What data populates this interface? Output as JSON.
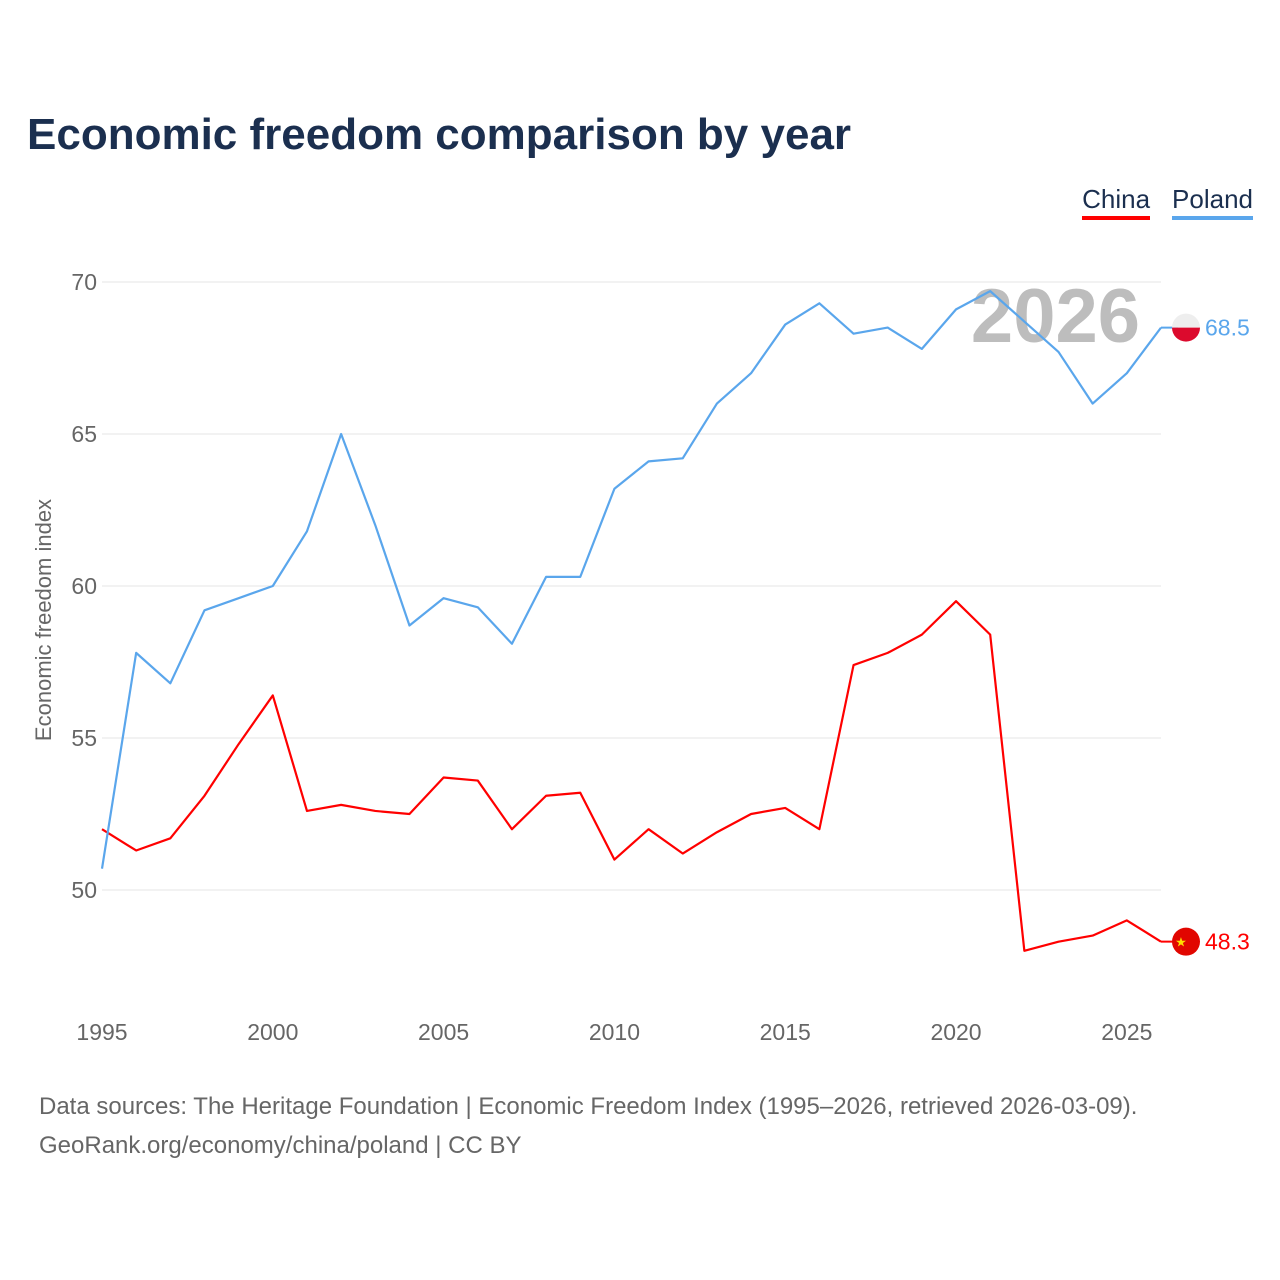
{
  "chart_data": {
    "type": "line",
    "title": "Economic freedom comparison by year",
    "xlabel": "",
    "ylabel": "Economic freedom index",
    "xlim": [
      1995,
      2026
    ],
    "ylim": [
      46.5,
      71
    ],
    "yticks": [
      50,
      55,
      60,
      65,
      70
    ],
    "xticks": [
      1995,
      2000,
      2005,
      2010,
      2015,
      2020,
      2025
    ],
    "grid": true,
    "legend_position": "top-right",
    "year_watermark": "2026",
    "x": [
      1995,
      1996,
      1997,
      1998,
      1999,
      2000,
      2001,
      2002,
      2003,
      2004,
      2005,
      2006,
      2007,
      2008,
      2009,
      2010,
      2011,
      2012,
      2013,
      2014,
      2015,
      2016,
      2017,
      2018,
      2019,
      2020,
      2021,
      2022,
      2023,
      2024,
      2025,
      2026
    ],
    "series": [
      {
        "name": "China",
        "color": "#ff0000",
        "end_label": "48.3",
        "flag": "china-flag",
        "values": [
          52.0,
          51.3,
          51.7,
          53.1,
          54.8,
          56.4,
          52.6,
          52.8,
          52.6,
          52.5,
          53.7,
          53.6,
          52.0,
          53.1,
          53.2,
          51.0,
          52.0,
          51.2,
          51.9,
          52.5,
          52.7,
          52.0,
          57.4,
          57.8,
          58.4,
          59.5,
          58.4,
          48.0,
          48.3,
          48.5,
          49.0,
          48.3
        ]
      },
      {
        "name": "Poland",
        "color": "#5aa6ec",
        "end_label": "68.5",
        "flag": "poland-flag",
        "values": [
          50.7,
          57.8,
          56.8,
          59.2,
          59.6,
          60.0,
          61.8,
          65.0,
          62.0,
          58.7,
          59.6,
          59.3,
          58.1,
          60.3,
          60.3,
          63.2,
          64.1,
          64.2,
          66.0,
          67.0,
          68.6,
          69.3,
          68.3,
          68.5,
          67.8,
          69.1,
          69.7,
          68.7,
          67.7,
          66.0,
          67.0,
          68.5
        ]
      }
    ]
  },
  "footer": {
    "line1": "Data sources: The Heritage Foundation | Economic Freedom Index (1995–2026, retrieved 2026-03-09).",
    "line2": "GeoRank.org/economy/china/poland | CC BY"
  }
}
